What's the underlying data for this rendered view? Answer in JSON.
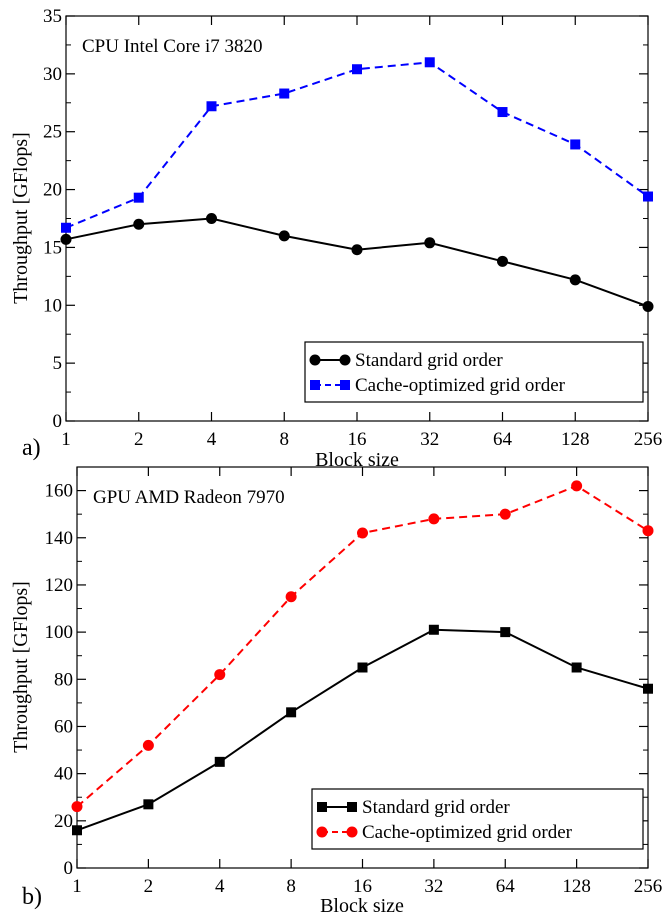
{
  "chart_data": [
    {
      "type": "line",
      "panel_label": "a)",
      "annotation": "CPU Intel Core i7 3820",
      "xlabel": "Block size",
      "ylabel": "Throughput [GFlops]",
      "x_scale": "log2",
      "categories": [
        "1",
        "2",
        "4",
        "8",
        "16",
        "32",
        "64",
        "128",
        "256"
      ],
      "ylim": [
        0,
        35
      ],
      "yticks": [
        0,
        5,
        10,
        15,
        20,
        25,
        30,
        35
      ],
      "legend_position": "bottom-right",
      "series": [
        {
          "name": "Standard grid order",
          "color": "#000000",
          "marker": "circle",
          "line": "solid",
          "values": [
            15.7,
            17.0,
            17.5,
            16.0,
            14.8,
            15.4,
            13.8,
            12.2,
            9.9
          ]
        },
        {
          "name": "Cache-optimized grid order",
          "color": "#0000ff",
          "marker": "square",
          "line": "dashed",
          "values": [
            16.7,
            19.3,
            27.2,
            28.3,
            30.4,
            31.0,
            26.7,
            23.9,
            19.4
          ]
        }
      ]
    },
    {
      "type": "line",
      "panel_label": "b)",
      "annotation": "GPU AMD Radeon 7970",
      "xlabel": "Block size",
      "ylabel": "Throughput [GFlops]",
      "x_scale": "log2",
      "categories": [
        "1",
        "2",
        "4",
        "8",
        "16",
        "32",
        "64",
        "128",
        "256"
      ],
      "ylim": [
        0,
        170
      ],
      "yticks": [
        0,
        20,
        40,
        60,
        80,
        100,
        120,
        140,
        160
      ],
      "legend_position": "bottom-right",
      "series": [
        {
          "name": "Standard grid order",
          "color": "#000000",
          "marker": "square",
          "line": "solid",
          "values": [
            16,
            27,
            45,
            66,
            85,
            101,
            100,
            85,
            76
          ]
        },
        {
          "name": "Cache-optimized grid order",
          "color": "#ff0000",
          "marker": "circle",
          "line": "dashed",
          "values": [
            26,
            52,
            82,
            115,
            142,
            148,
            150,
            162,
            143
          ]
        }
      ]
    }
  ]
}
